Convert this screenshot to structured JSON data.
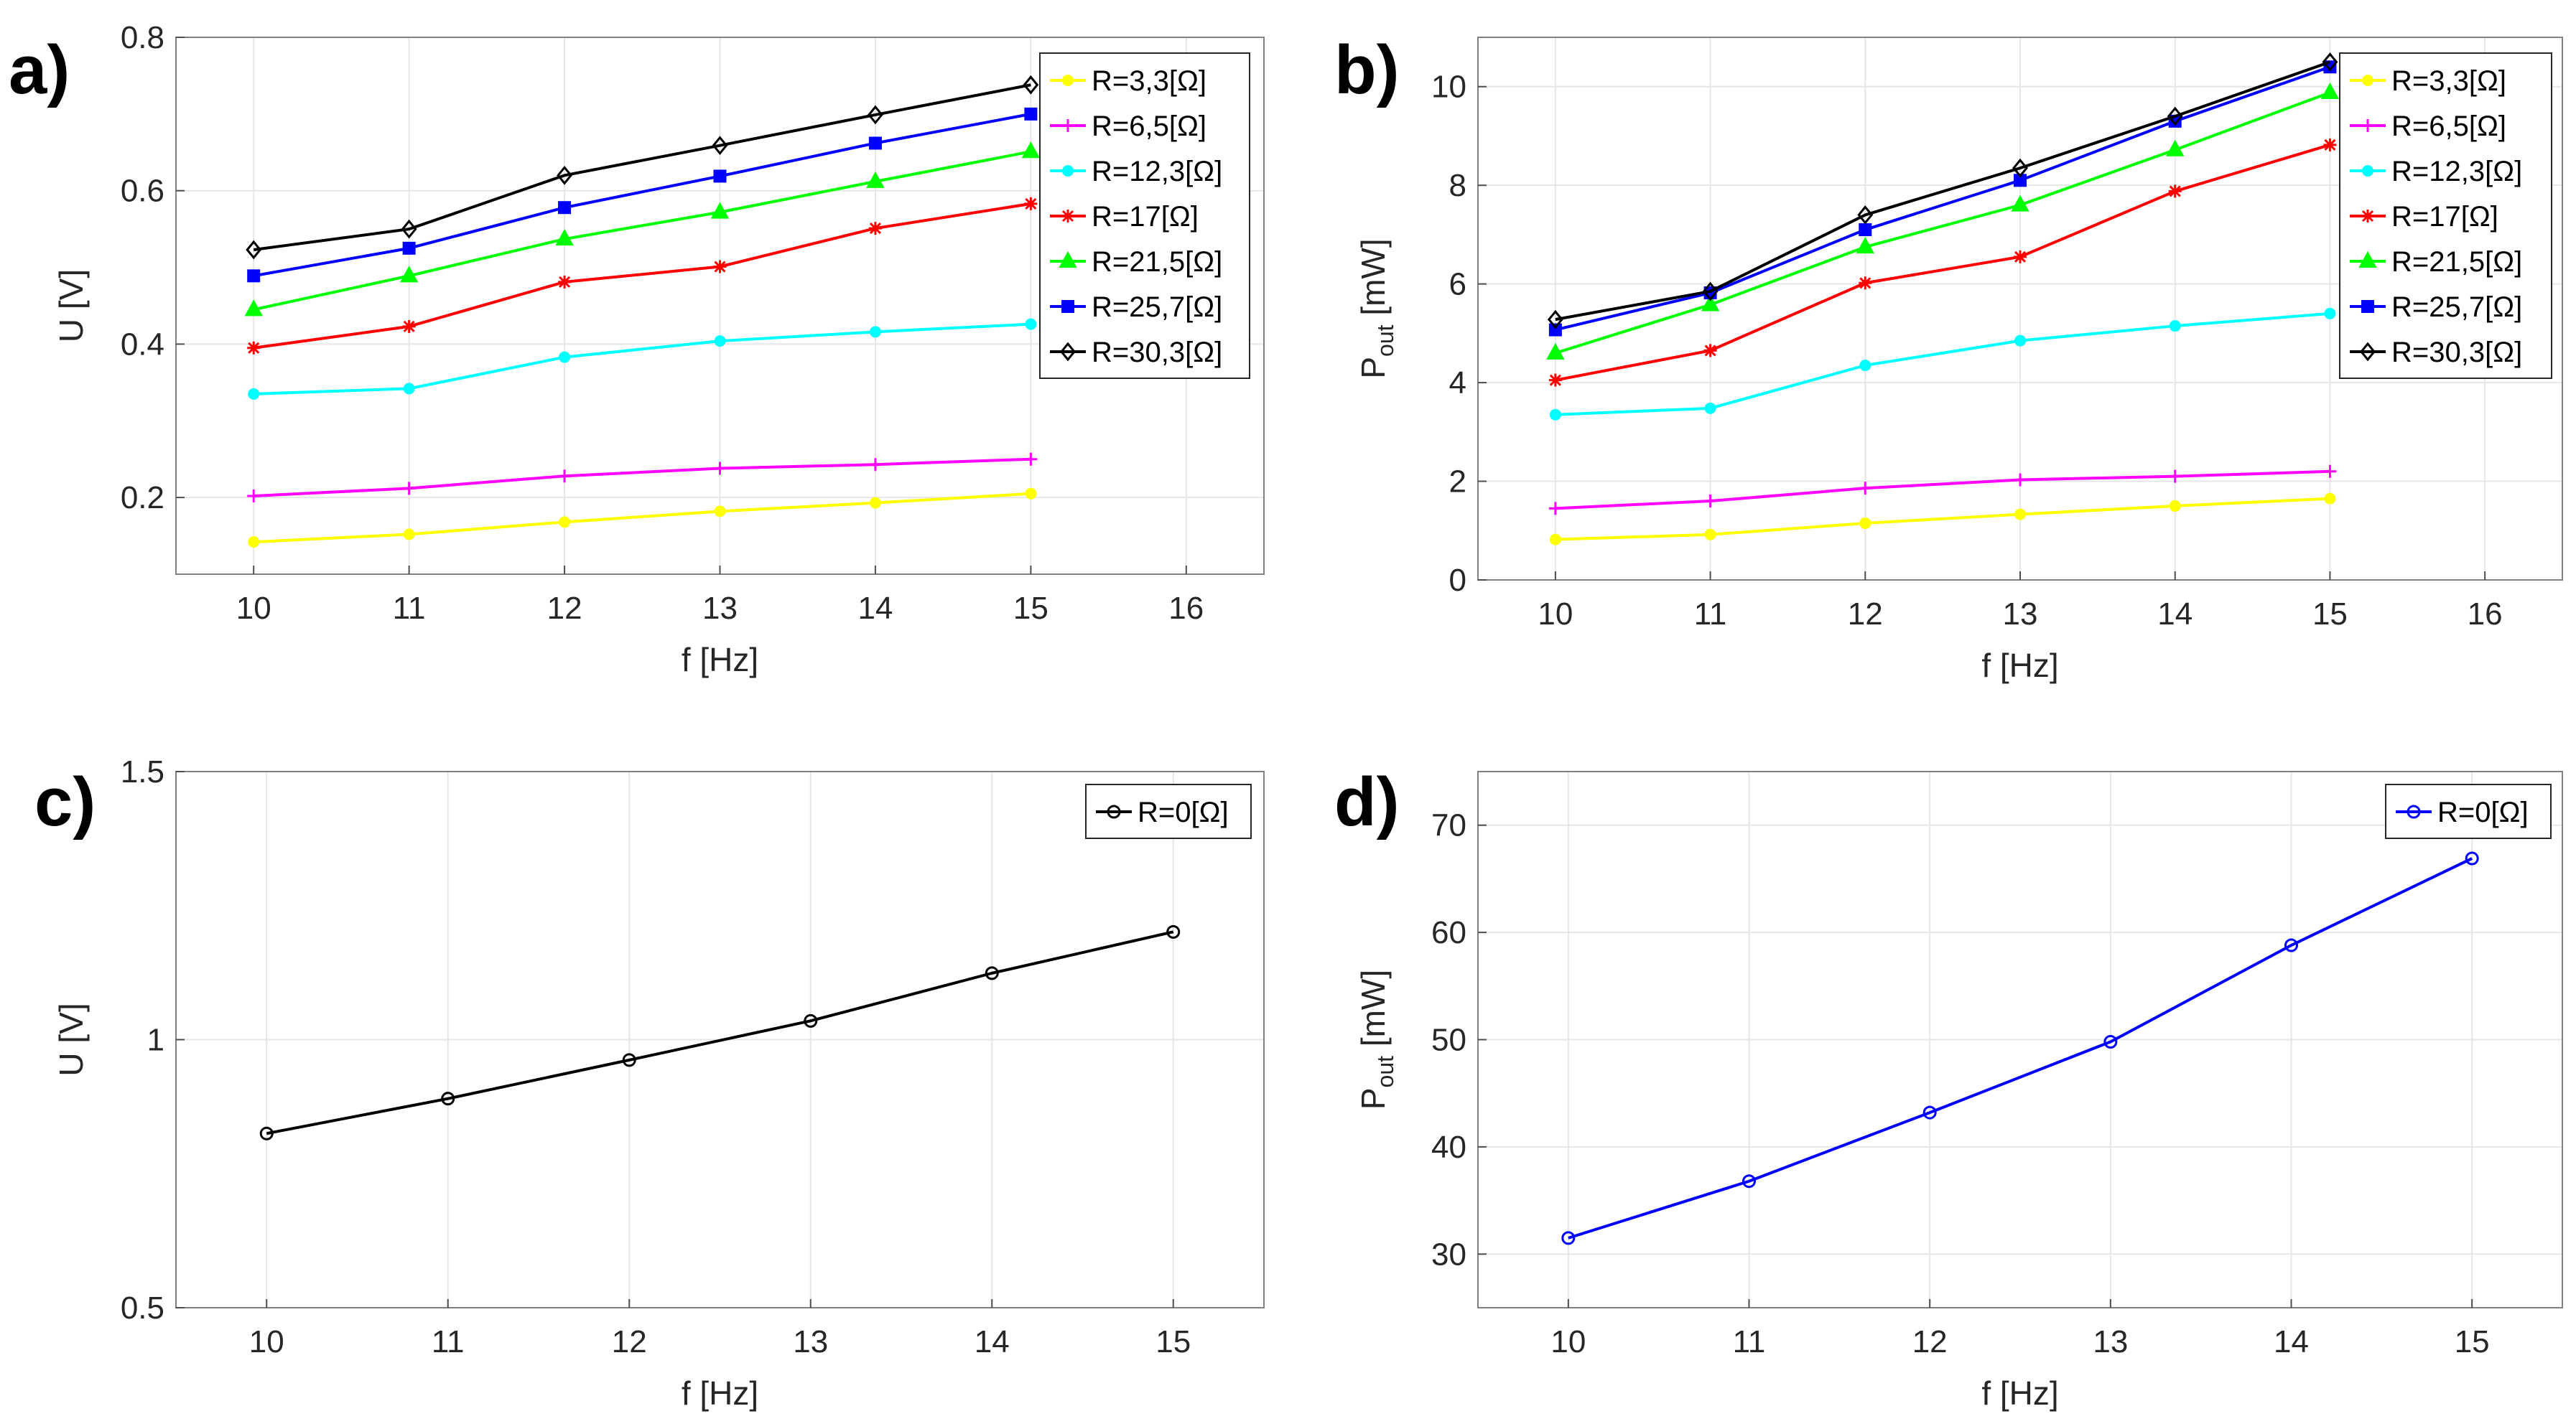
{
  "chart_data": [
    {
      "panel": "a)",
      "type": "line",
      "xlabel": "f [Hz]",
      "ylabel": "U [V]",
      "ylabel_sub": "",
      "xlim": [
        9.5,
        16.5
      ],
      "ylim": [
        0.1,
        0.8
      ],
      "xticks": [
        "10",
        "11",
        "12",
        "13",
        "14",
        "15",
        "16"
      ],
      "xtick_values": [
        10,
        11,
        12,
        13,
        14,
        15,
        16
      ],
      "yticks": [
        "0.2",
        "0.4",
        "0.6",
        "0.8"
      ],
      "ytick_values": [
        0.2,
        0.4,
        0.6,
        0.8
      ],
      "grid": true,
      "legend_position": "top-right",
      "x": [
        10,
        11,
        12,
        13,
        14,
        15
      ],
      "series": [
        {
          "name": "R=3,3[Ω]",
          "color": "#ffff00",
          "marker": "circle",
          "values": [
            0.142,
            0.152,
            0.168,
            0.182,
            0.193,
            0.205
          ]
        },
        {
          "name": "R=6,5[Ω]",
          "color": "#ff00ff",
          "marker": "plus",
          "values": [
            0.202,
            0.212,
            0.228,
            0.238,
            0.243,
            0.25
          ]
        },
        {
          "name": "R=12,3[Ω]",
          "color": "#00ffff",
          "marker": "circle",
          "values": [
            0.335,
            0.342,
            0.383,
            0.404,
            0.416,
            0.426
          ]
        },
        {
          "name": "R=17[Ω]",
          "color": "#ff0000",
          "marker": "asterisk",
          "values": [
            0.395,
            0.423,
            0.481,
            0.501,
            0.551,
            0.583
          ]
        },
        {
          "name": "R=21,5[Ω]",
          "color": "#00ff00",
          "marker": "triangle",
          "values": [
            0.445,
            0.489,
            0.537,
            0.572,
            0.612,
            0.651
          ]
        },
        {
          "name": "R=25,7[Ω]",
          "color": "#0000ff",
          "marker": "square",
          "values": [
            0.489,
            0.525,
            0.578,
            0.619,
            0.662,
            0.7
          ]
        },
        {
          "name": "R=30,3[Ω]",
          "color": "#000000",
          "marker": "diamond",
          "values": [
            0.523,
            0.55,
            0.62,
            0.659,
            0.699,
            0.738
          ]
        }
      ]
    },
    {
      "panel": "b)",
      "type": "line",
      "xlabel": "f [Hz]",
      "ylabel": "P",
      "ylabel_sub": "out",
      "ylabel_unit": " [mW]",
      "xlim": [
        9.5,
        16.5
      ],
      "ylim": [
        0,
        11
      ],
      "xticks": [
        "10",
        "11",
        "12",
        "13",
        "14",
        "15",
        "16"
      ],
      "xtick_values": [
        10,
        11,
        12,
        13,
        14,
        15,
        16
      ],
      "yticks": [
        "0",
        "2",
        "4",
        "6",
        "8",
        "10"
      ],
      "ytick_values": [
        0,
        2,
        4,
        6,
        8,
        10
      ],
      "grid": true,
      "legend_position": "top-right",
      "x": [
        10,
        11,
        12,
        13,
        14,
        15
      ],
      "series": [
        {
          "name": "R=3,3[Ω]",
          "color": "#ffff00",
          "marker": "circle",
          "values": [
            0.82,
            0.92,
            1.15,
            1.33,
            1.5,
            1.65
          ]
        },
        {
          "name": "R=6,5[Ω]",
          "color": "#ff00ff",
          "marker": "plus",
          "values": [
            1.45,
            1.6,
            1.86,
            2.03,
            2.1,
            2.2
          ]
        },
        {
          "name": "R=12,3[Ω]",
          "color": "#00ffff",
          "marker": "circle",
          "values": [
            3.35,
            3.48,
            4.35,
            4.85,
            5.15,
            5.4
          ]
        },
        {
          "name": "R=17[Ω]",
          "color": "#ff0000",
          "marker": "asterisk",
          "values": [
            4.05,
            4.65,
            6.02,
            6.55,
            7.88,
            8.82
          ]
        },
        {
          "name": "R=21,5[Ω]",
          "color": "#00ff00",
          "marker": "triangle",
          "values": [
            4.6,
            5.58,
            6.75,
            7.6,
            8.72,
            9.88
          ]
        },
        {
          "name": "R=25,7[Ω]",
          "color": "#0000ff",
          "marker": "square",
          "values": [
            5.07,
            5.82,
            7.1,
            8.1,
            9.3,
            10.4
          ]
        },
        {
          "name": "R=30,3[Ω]",
          "color": "#000000",
          "marker": "diamond",
          "values": [
            5.28,
            5.85,
            7.4,
            8.35,
            9.4,
            10.5
          ]
        }
      ]
    },
    {
      "panel": "c)",
      "type": "line",
      "xlabel": "f [Hz]",
      "ylabel": "U [V]",
      "ylabel_sub": "",
      "xlim": [
        9.5,
        15.5
      ],
      "ylim": [
        0.5,
        1.5
      ],
      "xticks": [
        "10",
        "11",
        "12",
        "13",
        "14",
        "15"
      ],
      "xtick_values": [
        10,
        11,
        12,
        13,
        14,
        15
      ],
      "yticks": [
        "0.5",
        "1",
        "1.5"
      ],
      "ytick_values": [
        0.5,
        1,
        1.5
      ],
      "grid": true,
      "legend_position": "top-right",
      "x": [
        10,
        11,
        12,
        13,
        14,
        15
      ],
      "series": [
        {
          "name": "R=0[Ω]",
          "color": "#000000",
          "marker": "open-circle",
          "values": [
            0.825,
            0.89,
            0.962,
            1.035,
            1.124,
            1.201
          ]
        }
      ]
    },
    {
      "panel": "d)",
      "type": "line",
      "xlabel": "f [Hz]",
      "ylabel": "P",
      "ylabel_sub": "out",
      "ylabel_unit": " [mW]",
      "xlim": [
        9.5,
        15.5
      ],
      "ylim": [
        25,
        75
      ],
      "xticks": [
        "10",
        "11",
        "12",
        "13",
        "14",
        "15"
      ],
      "xtick_values": [
        10,
        11,
        12,
        13,
        14,
        15
      ],
      "yticks": [
        "30",
        "40",
        "50",
        "60",
        "70"
      ],
      "ytick_values": [
        30,
        40,
        50,
        60,
        70
      ],
      "grid": true,
      "legend_position": "top-right",
      "x": [
        10,
        11,
        12,
        13,
        14,
        15
      ],
      "series": [
        {
          "name": "R=0[Ω]",
          "color": "#0000ff",
          "marker": "open-circle",
          "values": [
            31.5,
            36.8,
            43.2,
            49.8,
            58.8,
            66.9
          ]
        }
      ]
    }
  ]
}
